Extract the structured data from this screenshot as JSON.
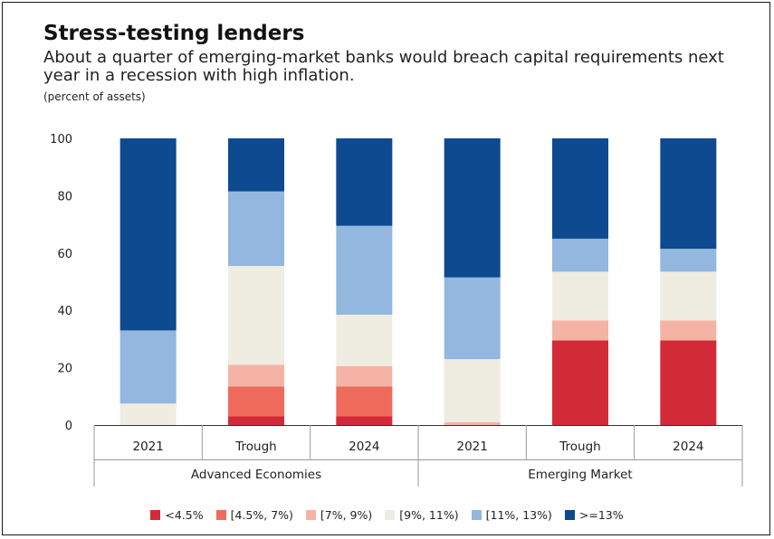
{
  "title": "Stress-testing lenders",
  "subtitle": "About a quarter of emerging-market banks would breach capital requirements next year in a recession with high inflation.",
  "unit_note": "(percent of assets)",
  "chart_data": {
    "type": "bar",
    "stacked": true,
    "categories": [
      "2021",
      "Trough",
      "2024",
      "2021",
      "Trough",
      "2024"
    ],
    "groups": [
      {
        "label": "Advanced Economies",
        "categories": [
          "2021",
          "Trough",
          "2024"
        ]
      },
      {
        "label": "Emerging Market",
        "categories": [
          "2021",
          "Trough",
          "2024"
        ]
      }
    ],
    "ylim": [
      0,
      100
    ],
    "yticks": [
      0,
      20,
      40,
      60,
      80,
      100
    ],
    "grid": false,
    "legend_position": "bottom",
    "series": [
      {
        "name": "<4.5%",
        "color": "#d32a37",
        "values": [
          0,
          3,
          3,
          0,
          29.5,
          29.5
        ]
      },
      {
        "name": "[4.5%, 7%)",
        "color": "#ee6b5c",
        "values": [
          0,
          10.5,
          10.5,
          0,
          0,
          0
        ]
      },
      {
        "name": "[7%, 9%)",
        "color": "#f5b3a6",
        "values": [
          0,
          7.5,
          7,
          1,
          7,
          7
        ]
      },
      {
        "name": "[9%, 11%)",
        "color": "#efece1",
        "values": [
          7.5,
          34.5,
          18,
          22,
          17,
          17
        ]
      },
      {
        "name": "[11%, 13%)",
        "color": "#93b7de",
        "values": [
          25.5,
          26,
          31,
          28.5,
          11.5,
          8
        ]
      },
      {
        "name": ">=13%",
        "color": "#0e4a8f",
        "values": [
          67,
          18.5,
          30.5,
          48.5,
          35,
          38.5
        ]
      }
    ]
  }
}
